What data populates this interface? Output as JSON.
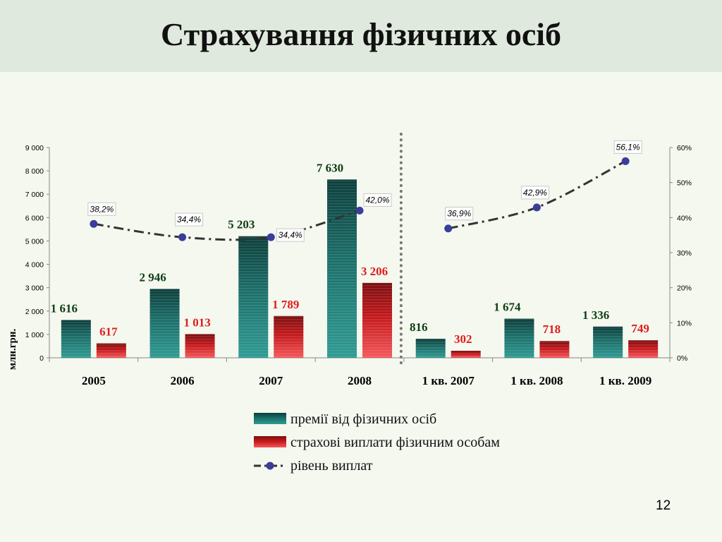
{
  "slide": {
    "title": "Страхування фізичних осіб",
    "page_number": "12"
  },
  "chart_data": {
    "type": "bar",
    "title": "",
    "ylabel": "млн.грн.",
    "ylim": [
      0,
      9000
    ],
    "y_ticks": [
      "0",
      "1 000",
      "2 000",
      "3 000",
      "4 000",
      "5 000",
      "6 000",
      "7 000",
      "8 000",
      "9 000"
    ],
    "y2lim": [
      0,
      60
    ],
    "y2_ticks": [
      "0%",
      "10%",
      "20%",
      "30%",
      "40%",
      "50%",
      "60%"
    ],
    "categories": [
      "2005",
      "2006",
      "2007",
      "2008",
      "1 кв. 2007",
      "1 кв. 2008",
      "1 кв. 2009"
    ],
    "series": [
      {
        "name": "премії від фізичних осіб",
        "type": "bar",
        "axis": "left",
        "color": "#1f8a84",
        "values": [
          1616,
          2946,
          5203,
          7630,
          816,
          1674,
          1336
        ],
        "labels": [
          "1 616",
          "2 946",
          "5 203",
          "7 630",
          "816",
          "1 674",
          "1 336"
        ],
        "label_color": "#0f3d14"
      },
      {
        "name": "страхові виплати фізичним особам",
        "type": "bar",
        "axis": "left",
        "color": "#e8242a",
        "values": [
          617,
          1013,
          1789,
          3206,
          302,
          718,
          749
        ],
        "labels": [
          "617",
          "1 013",
          "1 789",
          "3 206",
          "302",
          "718",
          "749"
        ],
        "label_color": "#e01b1b"
      },
      {
        "name": "рівень виплат",
        "type": "line",
        "axis": "right",
        "color": "#3a3d9a",
        "values": [
          38.2,
          34.4,
          34.4,
          42.0,
          36.9,
          42.9,
          56.1
        ],
        "labels": [
          "38,2%",
          "34,4%",
          "34,4%",
          "42,0%",
          "36,9%",
          "42,9%",
          "56,1%"
        ]
      }
    ],
    "line_segments": [
      [
        0,
        3
      ],
      [
        4,
        6
      ]
    ],
    "separator_after_category": "2008",
    "legend": {
      "position": "bottom"
    }
  }
}
